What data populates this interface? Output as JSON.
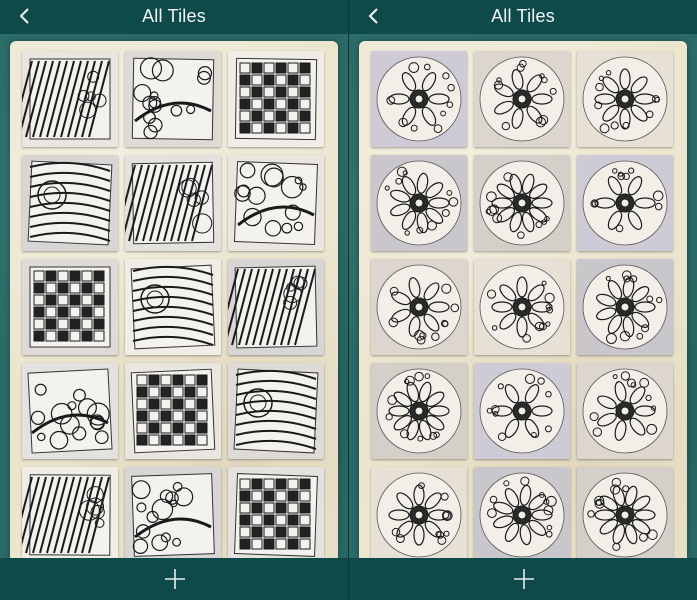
{
  "colors": {
    "nav_bar": "#0f4a4b",
    "backdrop": "#2a6b67",
    "card": "#ece6cf",
    "nav_text": "#f3f6f6"
  },
  "screens": [
    {
      "title": "All Tiles",
      "back_icon": "chevron-left-icon",
      "add_icon": "plus-icon",
      "tile_shape": "square",
      "tile_count": 15
    },
    {
      "title": "All Tiles",
      "back_icon": "chevron-left-icon",
      "add_icon": "plus-icon",
      "tile_shape": "round",
      "tile_count": 15
    }
  ]
}
